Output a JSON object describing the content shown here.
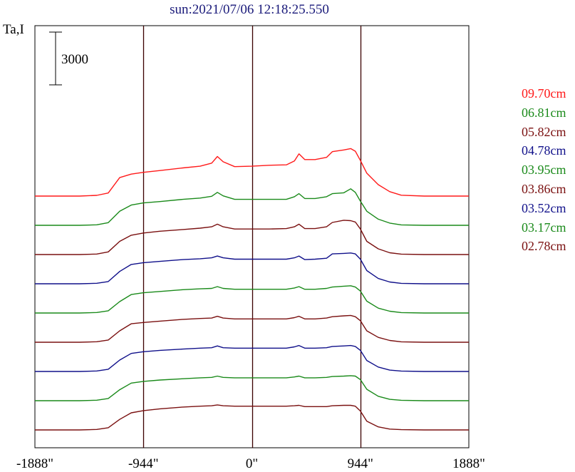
{
  "header": {
    "title": "sun:2021/07/06 12:18:25.550"
  },
  "chart_data": {
    "type": "line",
    "ylabel": "Ta,I",
    "scale_bar": {
      "label": "3000",
      "value": 3000
    },
    "x_ticks": [
      {
        "value": -1888,
        "label": "-1888\""
      },
      {
        "value": -944,
        "label": "-944\""
      },
      {
        "value": 0,
        "label": "0\""
      },
      {
        "value": 944,
        "label": "944\""
      },
      {
        "value": 1888,
        "label": "1888\""
      }
    ],
    "xlim": [
      -1888,
      1888
    ],
    "vertical_lines": [
      -944,
      0,
      944
    ],
    "series": [
      {
        "name": "09.70cm",
        "color": "#ff1a1a",
        "offset": 8,
        "points": [
          [
            -1888,
            0
          ],
          [
            -1500,
            0
          ],
          [
            -1350,
            80
          ],
          [
            -1250,
            350
          ],
          [
            -1150,
            2100
          ],
          [
            -1050,
            2500
          ],
          [
            -944,
            2700
          ],
          [
            -800,
            2900
          ],
          [
            -600,
            3200
          ],
          [
            -450,
            3400
          ],
          [
            -350,
            3750
          ],
          [
            -300,
            4500
          ],
          [
            -250,
            3900
          ],
          [
            -150,
            3350
          ],
          [
            0,
            3400
          ],
          [
            150,
            3500
          ],
          [
            300,
            3550
          ],
          [
            370,
            4000
          ],
          [
            410,
            4800
          ],
          [
            460,
            4150
          ],
          [
            550,
            4150
          ],
          [
            650,
            4400
          ],
          [
            700,
            5050
          ],
          [
            800,
            5250
          ],
          [
            860,
            5400
          ],
          [
            900,
            5100
          ],
          [
            944,
            4050
          ],
          [
            1000,
            2600
          ],
          [
            1100,
            1300
          ],
          [
            1200,
            500
          ],
          [
            1300,
            100
          ],
          [
            1500,
            0
          ],
          [
            1888,
            0
          ]
        ]
      },
      {
        "name": "06.81cm",
        "color": "#1a8a1a",
        "offset": 7,
        "points": [
          [
            -1888,
            0
          ],
          [
            -1500,
            0
          ],
          [
            -1350,
            60
          ],
          [
            -1250,
            300
          ],
          [
            -1150,
            1600
          ],
          [
            -1050,
            2300
          ],
          [
            -944,
            2550
          ],
          [
            -800,
            2700
          ],
          [
            -600,
            2950
          ],
          [
            -450,
            3100
          ],
          [
            -350,
            3300
          ],
          [
            -300,
            3750
          ],
          [
            -250,
            3350
          ],
          [
            -150,
            2950
          ],
          [
            0,
            2950
          ],
          [
            150,
            2950
          ],
          [
            300,
            2950
          ],
          [
            370,
            3250
          ],
          [
            410,
            3600
          ],
          [
            460,
            3050
          ],
          [
            550,
            3050
          ],
          [
            650,
            3250
          ],
          [
            700,
            3600
          ],
          [
            800,
            3700
          ],
          [
            860,
            4150
          ],
          [
            900,
            3750
          ],
          [
            944,
            2750
          ],
          [
            1000,
            1600
          ],
          [
            1100,
            700
          ],
          [
            1200,
            250
          ],
          [
            1300,
            50
          ],
          [
            1500,
            0
          ],
          [
            1888,
            0
          ]
        ]
      },
      {
        "name": "05.82cm",
        "color": "#7a1010",
        "offset": 6,
        "points": [
          [
            -1888,
            0
          ],
          [
            -1500,
            0
          ],
          [
            -1350,
            60
          ],
          [
            -1250,
            300
          ],
          [
            -1150,
            1500
          ],
          [
            -1050,
            2200
          ],
          [
            -944,
            2450
          ],
          [
            -800,
            2650
          ],
          [
            -600,
            2850
          ],
          [
            -450,
            3000
          ],
          [
            -350,
            3150
          ],
          [
            -300,
            3450
          ],
          [
            -250,
            3150
          ],
          [
            -150,
            2900
          ],
          [
            0,
            2900
          ],
          [
            150,
            2900
          ],
          [
            300,
            2950
          ],
          [
            370,
            3150
          ],
          [
            410,
            3450
          ],
          [
            460,
            2950
          ],
          [
            550,
            2950
          ],
          [
            650,
            3150
          ],
          [
            700,
            3650
          ],
          [
            800,
            3900
          ],
          [
            860,
            3850
          ],
          [
            900,
            3700
          ],
          [
            944,
            2900
          ],
          [
            1000,
            1500
          ],
          [
            1100,
            650
          ],
          [
            1200,
            200
          ],
          [
            1300,
            50
          ],
          [
            1500,
            0
          ],
          [
            1888,
            0
          ]
        ]
      },
      {
        "name": "04.78cm",
        "color": "#10108a",
        "offset": 5,
        "points": [
          [
            -1888,
            0
          ],
          [
            -1500,
            0
          ],
          [
            -1350,
            60
          ],
          [
            -1250,
            250
          ],
          [
            -1150,
            1400
          ],
          [
            -1050,
            2200
          ],
          [
            -944,
            2400
          ],
          [
            -800,
            2550
          ],
          [
            -600,
            2750
          ],
          [
            -450,
            2850
          ],
          [
            -350,
            2950
          ],
          [
            -300,
            3150
          ],
          [
            -250,
            2950
          ],
          [
            -150,
            2800
          ],
          [
            0,
            2800
          ],
          [
            150,
            2800
          ],
          [
            300,
            2800
          ],
          [
            370,
            2950
          ],
          [
            410,
            3150
          ],
          [
            460,
            2750
          ],
          [
            550,
            2800
          ],
          [
            650,
            2900
          ],
          [
            700,
            3400
          ],
          [
            800,
            3450
          ],
          [
            860,
            3500
          ],
          [
            900,
            3400
          ],
          [
            944,
            2800
          ],
          [
            1000,
            1500
          ],
          [
            1100,
            600
          ],
          [
            1200,
            200
          ],
          [
            1300,
            50
          ],
          [
            1500,
            0
          ],
          [
            1888,
            0
          ]
        ]
      },
      {
        "name": "03.95cm",
        "color": "#1a8a1a",
        "offset": 4,
        "points": [
          [
            -1888,
            0
          ],
          [
            -1500,
            0
          ],
          [
            -1350,
            60
          ],
          [
            -1250,
            250
          ],
          [
            -1150,
            1300
          ],
          [
            -1050,
            2100
          ],
          [
            -944,
            2300
          ],
          [
            -800,
            2450
          ],
          [
            -600,
            2650
          ],
          [
            -450,
            2750
          ],
          [
            -350,
            2800
          ],
          [
            -300,
            3000
          ],
          [
            -250,
            2800
          ],
          [
            -150,
            2700
          ],
          [
            0,
            2700
          ],
          [
            150,
            2700
          ],
          [
            300,
            2700
          ],
          [
            370,
            2850
          ],
          [
            410,
            3000
          ],
          [
            460,
            2700
          ],
          [
            550,
            2700
          ],
          [
            650,
            2800
          ],
          [
            700,
            2950
          ],
          [
            800,
            3050
          ],
          [
            860,
            3100
          ],
          [
            900,
            2950
          ],
          [
            944,
            2500
          ],
          [
            1000,
            1350
          ],
          [
            1100,
            550
          ],
          [
            1200,
            200
          ],
          [
            1300,
            50
          ],
          [
            1500,
            0
          ],
          [
            1888,
            0
          ]
        ]
      },
      {
        "name": "03.86cm",
        "color": "#7a1010",
        "offset": 3,
        "points": [
          [
            -1888,
            0
          ],
          [
            -1500,
            0
          ],
          [
            -1350,
            60
          ],
          [
            -1250,
            250
          ],
          [
            -1150,
            1300
          ],
          [
            -1050,
            2100
          ],
          [
            -944,
            2250
          ],
          [
            -800,
            2400
          ],
          [
            -600,
            2600
          ],
          [
            -450,
            2700
          ],
          [
            -350,
            2750
          ],
          [
            -300,
            2950
          ],
          [
            -250,
            2750
          ],
          [
            -150,
            2650
          ],
          [
            0,
            2650
          ],
          [
            150,
            2650
          ],
          [
            300,
            2650
          ],
          [
            370,
            2800
          ],
          [
            410,
            2950
          ],
          [
            460,
            2650
          ],
          [
            550,
            2650
          ],
          [
            650,
            2750
          ],
          [
            700,
            2900
          ],
          [
            800,
            3000
          ],
          [
            860,
            3050
          ],
          [
            900,
            2900
          ],
          [
            944,
            2450
          ],
          [
            1000,
            1300
          ],
          [
            1100,
            550
          ],
          [
            1200,
            200
          ],
          [
            1300,
            50
          ],
          [
            1500,
            0
          ],
          [
            1888,
            0
          ]
        ]
      },
      {
        "name": "03.52cm",
        "color": "#10108a",
        "offset": 2,
        "points": [
          [
            -1888,
            0
          ],
          [
            -1500,
            0
          ],
          [
            -1350,
            60
          ],
          [
            -1250,
            250
          ],
          [
            -1150,
            1300
          ],
          [
            -1050,
            2050
          ],
          [
            -944,
            2250
          ],
          [
            -800,
            2400
          ],
          [
            -600,
            2550
          ],
          [
            -450,
            2650
          ],
          [
            -350,
            2700
          ],
          [
            -300,
            2900
          ],
          [
            -250,
            2700
          ],
          [
            -150,
            2650
          ],
          [
            0,
            2650
          ],
          [
            150,
            2650
          ],
          [
            300,
            2650
          ],
          [
            370,
            2800
          ],
          [
            410,
            2950
          ],
          [
            460,
            2650
          ],
          [
            550,
            2650
          ],
          [
            650,
            2700
          ],
          [
            700,
            2850
          ],
          [
            800,
            2900
          ],
          [
            860,
            2950
          ],
          [
            900,
            2850
          ],
          [
            944,
            2400
          ],
          [
            1000,
            1250
          ],
          [
            1100,
            500
          ],
          [
            1200,
            150
          ],
          [
            1300,
            50
          ],
          [
            1500,
            0
          ],
          [
            1888,
            0
          ]
        ]
      },
      {
        "name": "03.17cm",
        "color": "#1a8a1a",
        "offset": 1,
        "points": [
          [
            -1888,
            0
          ],
          [
            -1500,
            0
          ],
          [
            -1350,
            60
          ],
          [
            -1250,
            250
          ],
          [
            -1150,
            1250
          ],
          [
            -1050,
            2000
          ],
          [
            -944,
            2200
          ],
          [
            -800,
            2350
          ],
          [
            -600,
            2500
          ],
          [
            -450,
            2600
          ],
          [
            -350,
            2650
          ],
          [
            -300,
            2800
          ],
          [
            -250,
            2650
          ],
          [
            -150,
            2600
          ],
          [
            0,
            2600
          ],
          [
            150,
            2600
          ],
          [
            300,
            2600
          ],
          [
            370,
            2700
          ],
          [
            410,
            2800
          ],
          [
            460,
            2600
          ],
          [
            550,
            2600
          ],
          [
            650,
            2650
          ],
          [
            700,
            2750
          ],
          [
            800,
            2800
          ],
          [
            860,
            2850
          ],
          [
            900,
            2800
          ],
          [
            944,
            2400
          ],
          [
            1000,
            1300
          ],
          [
            1100,
            500
          ],
          [
            1200,
            150
          ],
          [
            1300,
            50
          ],
          [
            1500,
            0
          ],
          [
            1888,
            0
          ]
        ]
      },
      {
        "name": "02.78cm",
        "color": "#7a1010",
        "offset": 0,
        "points": [
          [
            -1888,
            0
          ],
          [
            -1500,
            0
          ],
          [
            -1350,
            60
          ],
          [
            -1250,
            250
          ],
          [
            -1150,
            1200
          ],
          [
            -1050,
            1950
          ],
          [
            -944,
            2200
          ],
          [
            -800,
            2400
          ],
          [
            -600,
            2600
          ],
          [
            -450,
            2700
          ],
          [
            -350,
            2750
          ],
          [
            -300,
            2850
          ],
          [
            -250,
            2750
          ],
          [
            -150,
            2700
          ],
          [
            0,
            2700
          ],
          [
            150,
            2700
          ],
          [
            300,
            2700
          ],
          [
            370,
            2750
          ],
          [
            410,
            2800
          ],
          [
            460,
            2650
          ],
          [
            550,
            2650
          ],
          [
            650,
            2650
          ],
          [
            700,
            2750
          ],
          [
            800,
            2800
          ],
          [
            860,
            2800
          ],
          [
            900,
            2700
          ],
          [
            944,
            2150
          ],
          [
            1000,
            1000
          ],
          [
            1100,
            350
          ],
          [
            1200,
            100
          ],
          [
            1300,
            30
          ],
          [
            1500,
            0
          ],
          [
            1888,
            0
          ]
        ]
      }
    ]
  }
}
